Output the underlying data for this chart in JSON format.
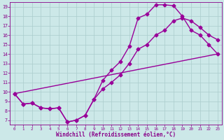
{
  "background_color": "#cce8e8",
  "line_color": "#990099",
  "grid_color": "#aacccc",
  "xlabel": "Windchill (Refroidissement éolien,°C)",
  "xlabel_color": "#880088",
  "tick_color": "#880088",
  "xlim": [
    -0.5,
    23.5
  ],
  "ylim": [
    6.5,
    19.5
  ],
  "yticks": [
    7,
    8,
    9,
    10,
    11,
    12,
    13,
    14,
    15,
    16,
    17,
    18,
    19
  ],
  "xticks": [
    0,
    1,
    2,
    3,
    4,
    5,
    6,
    7,
    8,
    9,
    10,
    11,
    12,
    13,
    14,
    15,
    16,
    17,
    18,
    19,
    20,
    21,
    22,
    23
  ],
  "line1_x": [
    0,
    1,
    2,
    3,
    4,
    5,
    6,
    7,
    8,
    9,
    10,
    11,
    12,
    13,
    14,
    15,
    16,
    17,
    18,
    19,
    20,
    21,
    22,
    23
  ],
  "line1_y": [
    9.8,
    8.7,
    8.8,
    8.3,
    8.2,
    8.3,
    6.8,
    7.0,
    7.5,
    9.2,
    11.2,
    12.3,
    13.2,
    14.8,
    17.8,
    18.2,
    19.2,
    19.2,
    19.1,
    18.0,
    16.5,
    16.0,
    15.0,
    14.0
  ],
  "line2_x": [
    0,
    1,
    2,
    3,
    4,
    5,
    6,
    7,
    8,
    9,
    10,
    11,
    12,
    13,
    14,
    15,
    16,
    17,
    18,
    19,
    20,
    21,
    22,
    23
  ],
  "line2_y": [
    9.8,
    8.7,
    8.8,
    8.3,
    8.2,
    8.3,
    6.8,
    7.0,
    7.5,
    9.2,
    10.3,
    11.0,
    11.8,
    13.0,
    14.5,
    15.0,
    16.0,
    16.5,
    17.5,
    17.8,
    17.5,
    16.8,
    16.0,
    15.5
  ],
  "line3_x": [
    0,
    23
  ],
  "line3_y": [
    9.8,
    14.0
  ],
  "marker": "D",
  "markersize": 2.5,
  "linewidth": 1.0
}
